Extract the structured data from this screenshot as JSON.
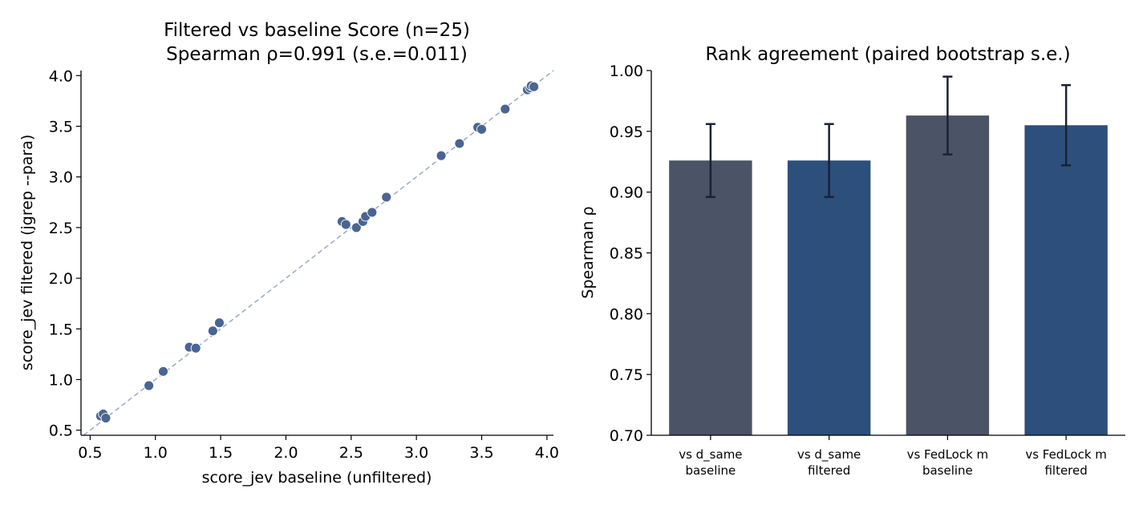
{
  "chart_data": [
    {
      "type": "scatter",
      "title_line1": "Filtered vs baseline Score (n=25)",
      "title_line2": "Spearman ρ=0.991 (s.e.=0.011)",
      "xlabel": "score_jev baseline (unfiltered)",
      "ylabel": "score_jev filtered (jgrep --para)",
      "xlim": [
        0.43,
        4.05
      ],
      "ylim": [
        0.45,
        4.05
      ],
      "xticks": [
        "0.5",
        "1.0",
        "1.5",
        "2.0",
        "2.5",
        "3.0",
        "3.5",
        "4.0"
      ],
      "yticks": [
        "0.5",
        "1.0",
        "1.5",
        "2.0",
        "2.5",
        "3.0",
        "3.5",
        "4.0"
      ],
      "reference_line": "y = x (dashed)",
      "point_color": "#4a6591",
      "line_color": "#9aaac2",
      "points": [
        {
          "x": 0.58,
          "y": 0.64
        },
        {
          "x": 0.6,
          "y": 0.66
        },
        {
          "x": 0.62,
          "y": 0.62
        },
        {
          "x": 0.95,
          "y": 0.94
        },
        {
          "x": 1.06,
          "y": 1.08
        },
        {
          "x": 1.26,
          "y": 1.32
        },
        {
          "x": 1.31,
          "y": 1.31
        },
        {
          "x": 1.44,
          "y": 1.48
        },
        {
          "x": 1.49,
          "y": 1.56
        },
        {
          "x": 2.43,
          "y": 2.56
        },
        {
          "x": 2.46,
          "y": 2.53
        },
        {
          "x": 2.54,
          "y": 2.5
        },
        {
          "x": 2.59,
          "y": 2.56
        },
        {
          "x": 2.61,
          "y": 2.61
        },
        {
          "x": 2.66,
          "y": 2.65
        },
        {
          "x": 2.77,
          "y": 2.8
        },
        {
          "x": 3.19,
          "y": 3.21
        },
        {
          "x": 3.33,
          "y": 3.33
        },
        {
          "x": 3.47,
          "y": 3.49
        },
        {
          "x": 3.5,
          "y": 3.47
        },
        {
          "x": 3.68,
          "y": 3.67
        },
        {
          "x": 3.85,
          "y": 3.86
        },
        {
          "x": 3.87,
          "y": 3.88
        },
        {
          "x": 3.88,
          "y": 3.9
        },
        {
          "x": 3.9,
          "y": 3.89
        }
      ]
    },
    {
      "type": "bar",
      "title": "Rank agreement (paired bootstrap s.e.)",
      "ylabel": "Spearman ρ",
      "ylim": [
        0.7,
        1.0
      ],
      "yticks": [
        "0.70",
        "0.75",
        "0.80",
        "0.85",
        "0.90",
        "0.95",
        "1.00"
      ],
      "categories": [
        [
          "vs d_same",
          "baseline"
        ],
        [
          "vs d_same",
          "filtered"
        ],
        [
          "vs FedLock m",
          "baseline"
        ],
        [
          "vs FedLock m",
          "filtered"
        ]
      ],
      "values": [
        0.926,
        0.926,
        0.963,
        0.955
      ],
      "errors": [
        0.03,
        0.03,
        0.032,
        0.033
      ],
      "colors": [
        "#4a5466",
        "#2c4f7c",
        "#4a5466",
        "#2c4f7c"
      ],
      "error_color": "#1a2233"
    }
  ]
}
